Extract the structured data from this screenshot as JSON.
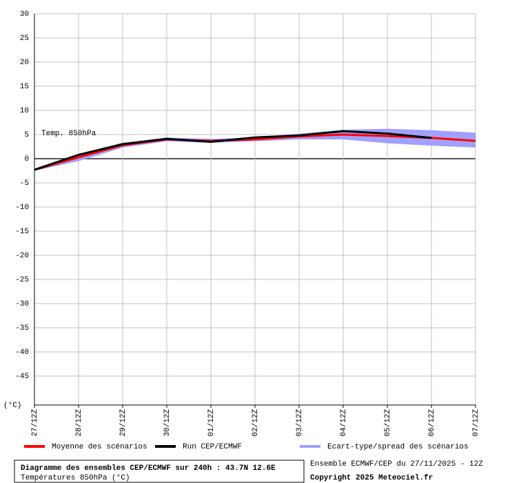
{
  "chart_data": {
    "type": "line",
    "annotation": "Temp. 850hPa",
    "y_label": "(°C)",
    "categories": [
      "27/12Z",
      "28/12Z",
      "29/12Z",
      "30/12Z",
      "01/12Z",
      "02/12Z",
      "03/12Z",
      "04/12Z",
      "05/12Z",
      "06/12Z",
      "07/12Z"
    ],
    "ylim": [
      -51,
      30
    ],
    "yticks": [
      30,
      25,
      20,
      15,
      10,
      5,
      0,
      -5,
      -10,
      -15,
      -20,
      -25,
      -30,
      -35,
      -40,
      -45
    ],
    "grid": true,
    "series": [
      {
        "name": "Moyenne des scénarios",
        "color": "#ff0000",
        "values": [
          -2.3,
          0.3,
          2.8,
          4.0,
          3.7,
          4.0,
          4.6,
          5.0,
          4.7,
          4.3,
          3.7
        ]
      },
      {
        "name": "Run CEP/ECMWF",
        "color": "#000000",
        "values": [
          -2.3,
          0.8,
          3.0,
          4.1,
          3.5,
          4.4,
          4.8,
          5.7,
          5.2,
          4.3,
          null
        ]
      },
      {
        "name": "Ecart-type/spread des scénarios",
        "color": "#a0a0ff",
        "upper": [
          -2.1,
          1.0,
          3.3,
          4.4,
          4.1,
          4.4,
          5.2,
          6.0,
          6.2,
          5.9,
          5.4
        ],
        "lower": [
          -2.5,
          -0.5,
          2.3,
          3.6,
          3.3,
          3.6,
          4.0,
          4.0,
          3.2,
          2.7,
          2.3
        ]
      }
    ],
    "footer": {
      "title": "Diagramme des ensembles CEP/ECMWF sur 240h : 43.7N 12.6E",
      "subtitle": "Températures 850hPa (°C)",
      "run": "Ensemble ECMWF/CEP du 27/11/2025 - 12Z",
      "copyright": "Copyright 2025 Meteociel.fr"
    }
  }
}
